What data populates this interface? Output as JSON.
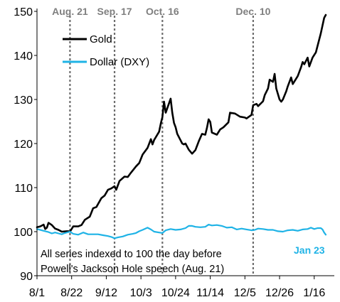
{
  "chart_data": {
    "type": "line",
    "title": "",
    "xlabel": "",
    "ylabel": "",
    "ylim": [
      90,
      150
    ],
    "yticks": [
      90,
      100,
      110,
      120,
      130,
      140,
      150
    ],
    "xlim": [
      "2024-08-01",
      "2025-01-23"
    ],
    "xticks": [
      {
        "date": "2024-08-01",
        "label": "8/1"
      },
      {
        "date": "2024-08-22",
        "label": "8/22"
      },
      {
        "date": "2024-09-12",
        "label": "9/12"
      },
      {
        "date": "2024-10-03",
        "label": "10/3"
      },
      {
        "date": "2024-10-24",
        "label": "10/24"
      },
      {
        "date": "2024-11-14",
        "label": "11/14"
      },
      {
        "date": "2024-12-05",
        "label": "12/5"
      },
      {
        "date": "2024-12-26",
        "label": "12/26"
      },
      {
        "date": "2025-01-16",
        "label": "1/16"
      }
    ],
    "grid": false,
    "legend_position": "top-left",
    "events": [
      {
        "date": "2024-08-21",
        "label": "Aug. 21"
      },
      {
        "date": "2024-09-17",
        "label": "Sep. 17"
      },
      {
        "date": "2024-10-16",
        "label": "Oct. 16"
      },
      {
        "date": "2024-12-10",
        "label": "Dec. 10"
      }
    ],
    "annotations": {
      "note_line1": "All series indexed to 100 the day before",
      "note_line2": "Powell's Jackson Hole speech (Aug. 21)",
      "end_label": "Jan 23"
    },
    "series": [
      {
        "name": "Gold",
        "color": "#000000",
        "points": [
          [
            "2024-08-01",
            101.0
          ],
          [
            "2024-08-03",
            101.2
          ],
          [
            "2024-08-05",
            101.6
          ],
          [
            "2024-08-06",
            100.6
          ],
          [
            "2024-08-07",
            100.9
          ],
          [
            "2024-08-08",
            102.0
          ],
          [
            "2024-08-10",
            101.5
          ],
          [
            "2024-08-12",
            100.7
          ],
          [
            "2024-08-14",
            100.4
          ],
          [
            "2024-08-16",
            100.0
          ],
          [
            "2024-08-19",
            100.1
          ],
          [
            "2024-08-20",
            100.1
          ],
          [
            "2024-08-21",
            100.0
          ],
          [
            "2024-08-23",
            101.2
          ],
          [
            "2024-08-26",
            101.2
          ],
          [
            "2024-08-28",
            101.5
          ],
          [
            "2024-08-30",
            102.7
          ],
          [
            "2024-09-02",
            103.4
          ],
          [
            "2024-09-04",
            105.3
          ],
          [
            "2024-09-06",
            105.6
          ],
          [
            "2024-09-09",
            107.6
          ],
          [
            "2024-09-11",
            108.2
          ],
          [
            "2024-09-13",
            109.5
          ],
          [
            "2024-09-15",
            109.8
          ],
          [
            "2024-09-17",
            110.3
          ],
          [
            "2024-09-18",
            109.5
          ],
          [
            "2024-09-20",
            111.5
          ],
          [
            "2024-09-23",
            112.5
          ],
          [
            "2024-09-25",
            112.4
          ],
          [
            "2024-09-27",
            113.4
          ],
          [
            "2024-09-30",
            114.8
          ],
          [
            "2024-10-02",
            115.6
          ],
          [
            "2024-10-04",
            117.5
          ],
          [
            "2024-10-07",
            119.0
          ],
          [
            "2024-10-08",
            120.0
          ],
          [
            "2024-10-09",
            121.0
          ],
          [
            "2024-10-10",
            119.8
          ],
          [
            "2024-10-11",
            120.8
          ],
          [
            "2024-10-14",
            122.7
          ],
          [
            "2024-10-15",
            124.5
          ],
          [
            "2024-10-16",
            126.0
          ],
          [
            "2024-10-17",
            129.5
          ],
          [
            "2024-10-18",
            127.0
          ],
          [
            "2024-10-21",
            130.2
          ],
          [
            "2024-10-22",
            127.0
          ],
          [
            "2024-10-23",
            124.7
          ],
          [
            "2024-10-24",
            123.7
          ],
          [
            "2024-10-25",
            122.2
          ],
          [
            "2024-10-28",
            120.0
          ],
          [
            "2024-10-29",
            119.8
          ],
          [
            "2024-10-30",
            120.0
          ],
          [
            "2024-11-01",
            118.6
          ],
          [
            "2024-11-03",
            117.7
          ],
          [
            "2024-11-05",
            118.5
          ],
          [
            "2024-11-07",
            120.5
          ],
          [
            "2024-11-09",
            122.2
          ],
          [
            "2024-11-11",
            122.0
          ],
          [
            "2024-11-12",
            123.6
          ],
          [
            "2024-11-13",
            125.5
          ],
          [
            "2024-11-14",
            124.9
          ],
          [
            "2024-11-15",
            122.5
          ],
          [
            "2024-11-18",
            122.0
          ],
          [
            "2024-11-20",
            123.2
          ],
          [
            "2024-11-22",
            123.7
          ],
          [
            "2024-11-25",
            124.8
          ],
          [
            "2024-11-26",
            127.0
          ],
          [
            "2024-11-29",
            126.8
          ],
          [
            "2024-12-02",
            126.1
          ],
          [
            "2024-12-05",
            125.9
          ],
          [
            "2024-12-06",
            125.7
          ],
          [
            "2024-12-09",
            126.5
          ],
          [
            "2024-12-10",
            128.7
          ],
          [
            "2024-12-12",
            129.0
          ],
          [
            "2024-12-13",
            128.5
          ],
          [
            "2024-12-16",
            129.6
          ],
          [
            "2024-12-17",
            131.0
          ],
          [
            "2024-12-19",
            132.5
          ],
          [
            "2024-12-20",
            134.5
          ],
          [
            "2024-12-22",
            134.0
          ],
          [
            "2024-12-23",
            135.8
          ],
          [
            "2024-12-24",
            132.5
          ],
          [
            "2024-12-26",
            130.0
          ],
          [
            "2024-12-27",
            129.5
          ],
          [
            "2024-12-28",
            130.0
          ],
          [
            "2024-12-30",
            131.8
          ],
          [
            "2024-12-31",
            133.0
          ],
          [
            "2025-01-02",
            135.0
          ],
          [
            "2025-01-03",
            133.5
          ],
          [
            "2025-01-06",
            135.3
          ],
          [
            "2025-01-08",
            137.3
          ],
          [
            "2025-01-09",
            138.5
          ],
          [
            "2025-01-10",
            138.0
          ],
          [
            "2025-01-12",
            139.5
          ],
          [
            "2025-01-13",
            137.5
          ],
          [
            "2025-01-15",
            139.5
          ],
          [
            "2025-01-17",
            140.7
          ],
          [
            "2025-01-20",
            145.0
          ],
          [
            "2025-01-22",
            148.5
          ],
          [
            "2025-01-23",
            149.2
          ]
        ]
      },
      {
        "name": "Dollar (DXY)",
        "color": "#1fb3e6",
        "points": [
          [
            "2024-08-01",
            100.6
          ],
          [
            "2024-08-03",
            100.4
          ],
          [
            "2024-08-05",
            100.2
          ],
          [
            "2024-08-08",
            99.9
          ],
          [
            "2024-08-10",
            99.6
          ],
          [
            "2024-08-12",
            99.8
          ],
          [
            "2024-08-14",
            99.6
          ],
          [
            "2024-08-16",
            99.4
          ],
          [
            "2024-08-18",
            99.7
          ],
          [
            "2024-08-21",
            100.0
          ],
          [
            "2024-08-23",
            99.5
          ],
          [
            "2024-08-26",
            99.3
          ],
          [
            "2024-08-29",
            99.8
          ],
          [
            "2024-09-01",
            99.4
          ],
          [
            "2024-09-04",
            99.4
          ],
          [
            "2024-09-07",
            99.4
          ],
          [
            "2024-09-10",
            99.2
          ],
          [
            "2024-09-13",
            99.0
          ],
          [
            "2024-09-15",
            98.8
          ],
          [
            "2024-09-17",
            98.5
          ],
          [
            "2024-09-19",
            98.7
          ],
          [
            "2024-09-22",
            98.9
          ],
          [
            "2024-09-25",
            99.3
          ],
          [
            "2024-09-28",
            99.5
          ],
          [
            "2024-09-30",
            99.7
          ],
          [
            "2024-10-02",
            100.1
          ],
          [
            "2024-10-04",
            100.4
          ],
          [
            "2024-10-07",
            100.9
          ],
          [
            "2024-10-09",
            100.5
          ],
          [
            "2024-10-11",
            100.0
          ],
          [
            "2024-10-14",
            99.8
          ],
          [
            "2024-10-16",
            99.7
          ],
          [
            "2024-10-18",
            100.3
          ],
          [
            "2024-10-21",
            100.6
          ],
          [
            "2024-10-24",
            100.4
          ],
          [
            "2024-10-27",
            100.5
          ],
          [
            "2024-10-30",
            100.8
          ],
          [
            "2024-11-01",
            101.3
          ],
          [
            "2024-11-03",
            101.3
          ],
          [
            "2024-11-05",
            101.1
          ],
          [
            "2024-11-08",
            101.0
          ],
          [
            "2024-11-11",
            101.1
          ],
          [
            "2024-11-13",
            101.6
          ],
          [
            "2024-11-15",
            101.4
          ],
          [
            "2024-11-18",
            101.5
          ],
          [
            "2024-11-21",
            101.3
          ],
          [
            "2024-11-24",
            100.9
          ],
          [
            "2024-11-27",
            101.0
          ],
          [
            "2024-11-30",
            100.5
          ],
          [
            "2024-12-03",
            100.7
          ],
          [
            "2024-12-06",
            100.5
          ],
          [
            "2024-12-09",
            100.3
          ],
          [
            "2024-12-11",
            100.4
          ],
          [
            "2024-12-13",
            100.7
          ],
          [
            "2024-12-16",
            100.6
          ],
          [
            "2024-12-19",
            100.4
          ],
          [
            "2024-12-22",
            100.4
          ],
          [
            "2024-12-25",
            100.1
          ],
          [
            "2024-12-28",
            100.0
          ],
          [
            "2024-12-31",
            100.3
          ],
          [
            "2025-01-03",
            100.4
          ],
          [
            "2025-01-06",
            100.2
          ],
          [
            "2025-01-09",
            100.5
          ],
          [
            "2025-01-12",
            100.6
          ],
          [
            "2025-01-14",
            100.9
          ],
          [
            "2025-01-16",
            100.6
          ],
          [
            "2025-01-18",
            100.8
          ],
          [
            "2025-01-20",
            100.8
          ],
          [
            "2025-01-21",
            100.5
          ],
          [
            "2025-01-22",
            99.8
          ],
          [
            "2025-01-23",
            99.3
          ]
        ]
      }
    ]
  }
}
